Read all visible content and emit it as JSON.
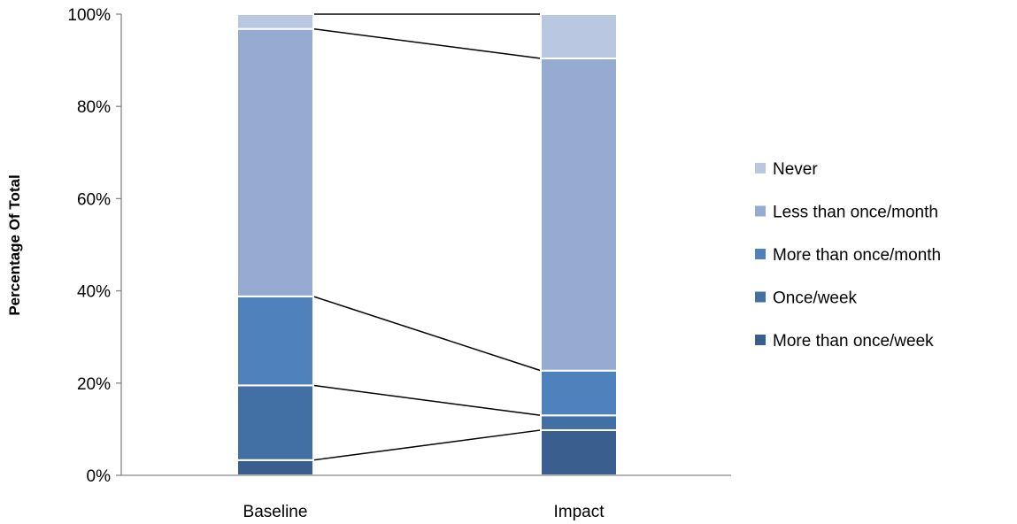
{
  "chart_data": {
    "type": "bar",
    "stacked": true,
    "normalized": true,
    "categories": [
      "Baseline",
      "Impact"
    ],
    "series": [
      {
        "name": "More than once/week",
        "values": [
          3.3,
          9.8
        ],
        "color": "#3A5F8F"
      },
      {
        "name": "Once/week",
        "values": [
          16.2,
          3.2
        ],
        "color": "#4270A4"
      },
      {
        "name": "More than once/month",
        "values": [
          19.3,
          9.7
        ],
        "color": "#4F81BD"
      },
      {
        "name": "Less than once/month",
        "values": [
          58.0,
          67.7
        ],
        "color": "#95ABD2"
      },
      {
        "name": "Never",
        "values": [
          3.2,
          9.6
        ],
        "color": "#B9C8E0"
      }
    ],
    "ylabel": "Percentage Of Total",
    "xlabel": "",
    "ylim": [
      0,
      100
    ],
    "yticks": [
      "0%",
      "20%",
      "40%",
      "60%",
      "80%",
      "100%"
    ],
    "legend_position": "right",
    "series_lines": true,
    "grid": false
  }
}
